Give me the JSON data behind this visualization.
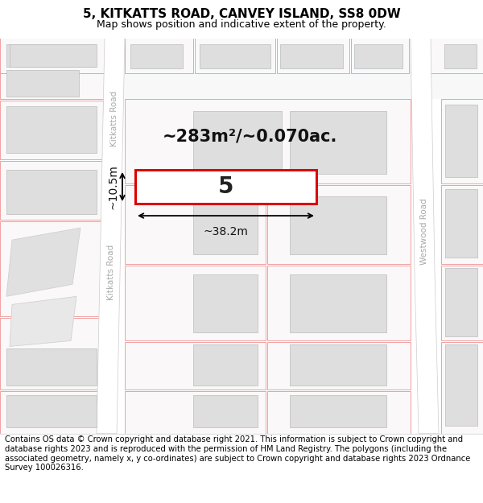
{
  "title": "5, KITKATTS ROAD, CANVEY ISLAND, SS8 0DW",
  "subtitle": "Map shows position and indicative extent of the property.",
  "footnote": "Contains OS data © Crown copyright and database right 2021. This information is subject to Crown copyright and database rights 2023 and is reproduced with the permission of HM Land Registry. The polygons (including the associated geometry, namely x, y co-ordinates) are subject to Crown copyright and database rights 2023 Ordnance Survey 100026316.",
  "map_bg": "#f2f0f0",
  "road_color": "#ffffff",
  "road_border": "#cccccc",
  "building_fill": "#dedede",
  "building_edge": "#bbbbbb",
  "parcel_edge": "#f0a0a0",
  "highlight_fill": "#ffffff",
  "highlight_edge": "#dd0000",
  "road_text_color": "#aaaaaa",
  "area_label": "~283m²/~0.070ac.",
  "dim_width": "~38.2m",
  "dim_height": "~10.5m",
  "property_num": "5",
  "road_label_left": "Kitkatts Road",
  "road_label_right": "Westwood Road",
  "title_fontsize": 11,
  "subtitle_fontsize": 9,
  "footnote_fontsize": 7.2
}
